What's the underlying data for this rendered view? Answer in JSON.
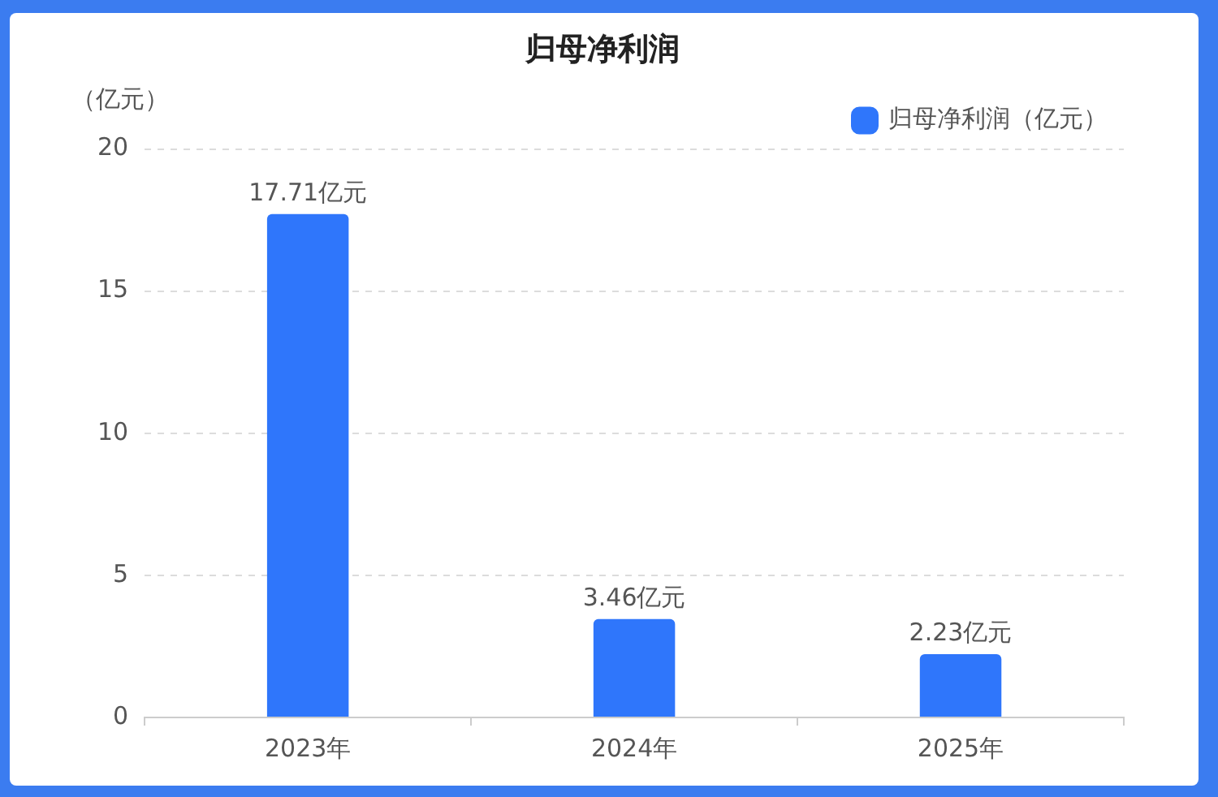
{
  "chart_data": {
    "type": "bar",
    "title": "归母净利润",
    "ylabel": "（亿元）",
    "categories": [
      "2023年",
      "2024年",
      "2025年"
    ],
    "series": [
      {
        "name": "归母净利润（亿元）",
        "color": "#2f76fb",
        "values": [
          17.71,
          3.46,
          2.23
        ],
        "value_labels": [
          "17.71亿元",
          "3.46亿元",
          "2.23亿元"
        ]
      }
    ],
    "ylim": [
      0,
      20
    ],
    "yticks": [
      0,
      5,
      10,
      15,
      20
    ],
    "grid": "y",
    "legend": "top right"
  }
}
